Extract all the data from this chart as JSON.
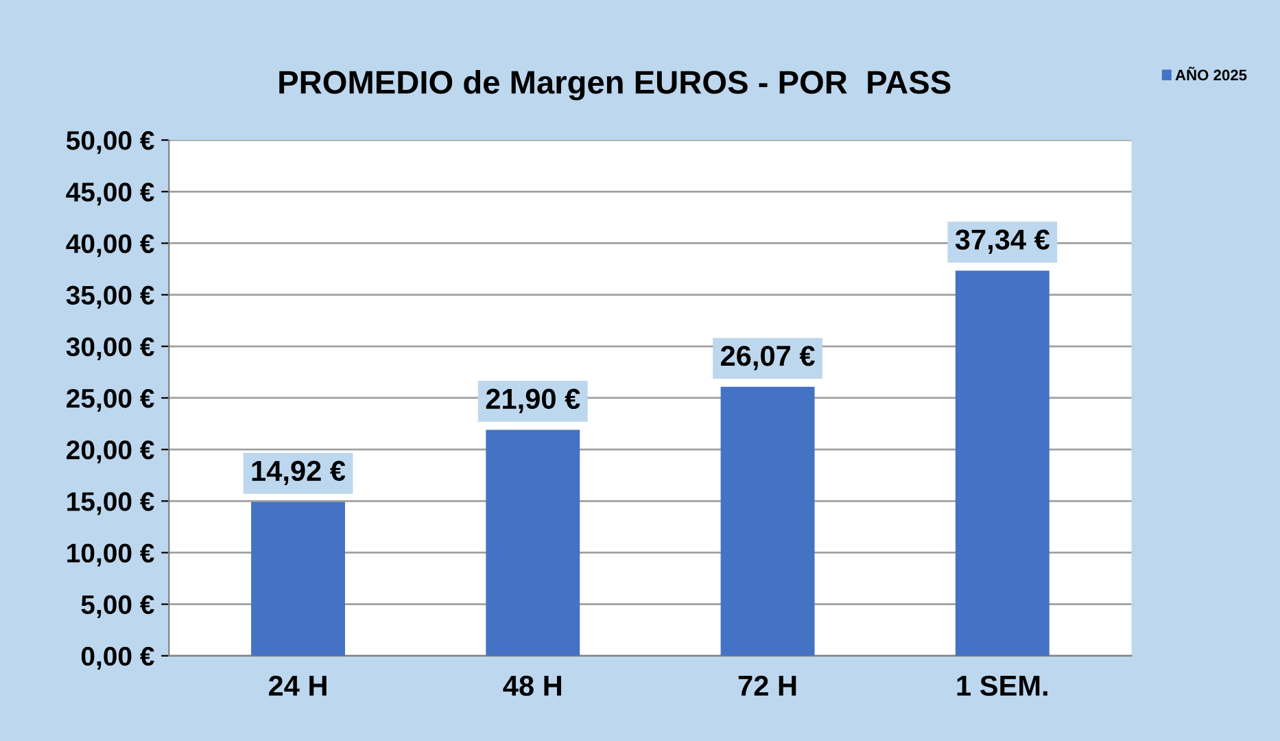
{
  "chart_data": {
    "type": "bar",
    "title": "PROMEDIO de Margen EUROS - POR  PASS",
    "categories": [
      "24 H",
      "48 H",
      "72 H",
      "1 SEM."
    ],
    "series": [
      {
        "name": "AÑO 2025",
        "color": "#4472c4",
        "values": [
          14.92,
          21.9,
          26.07,
          37.34
        ],
        "value_labels": [
          "14,92 €",
          "21,90 €",
          "26,07 €",
          "37,34 €"
        ]
      }
    ],
    "ylim": [
      0,
      50
    ],
    "yticks": [
      {
        "value": 0,
        "label": "0,00 €"
      },
      {
        "value": 5,
        "label": "5,00 €"
      },
      {
        "value": 10,
        "label": "10,00 €"
      },
      {
        "value": 15,
        "label": "15,00 €"
      },
      {
        "value": 20,
        "label": "20,00 €"
      },
      {
        "value": 25,
        "label": "25,00 €"
      },
      {
        "value": 30,
        "label": "30,00 €"
      },
      {
        "value": 35,
        "label": "35,00 €"
      },
      {
        "value": 40,
        "label": "40,00 €"
      },
      {
        "value": 45,
        "label": "45,00 €"
      },
      {
        "value": 50,
        "label": "50,00 €"
      }
    ],
    "grid": "y",
    "legend": "top right"
  }
}
